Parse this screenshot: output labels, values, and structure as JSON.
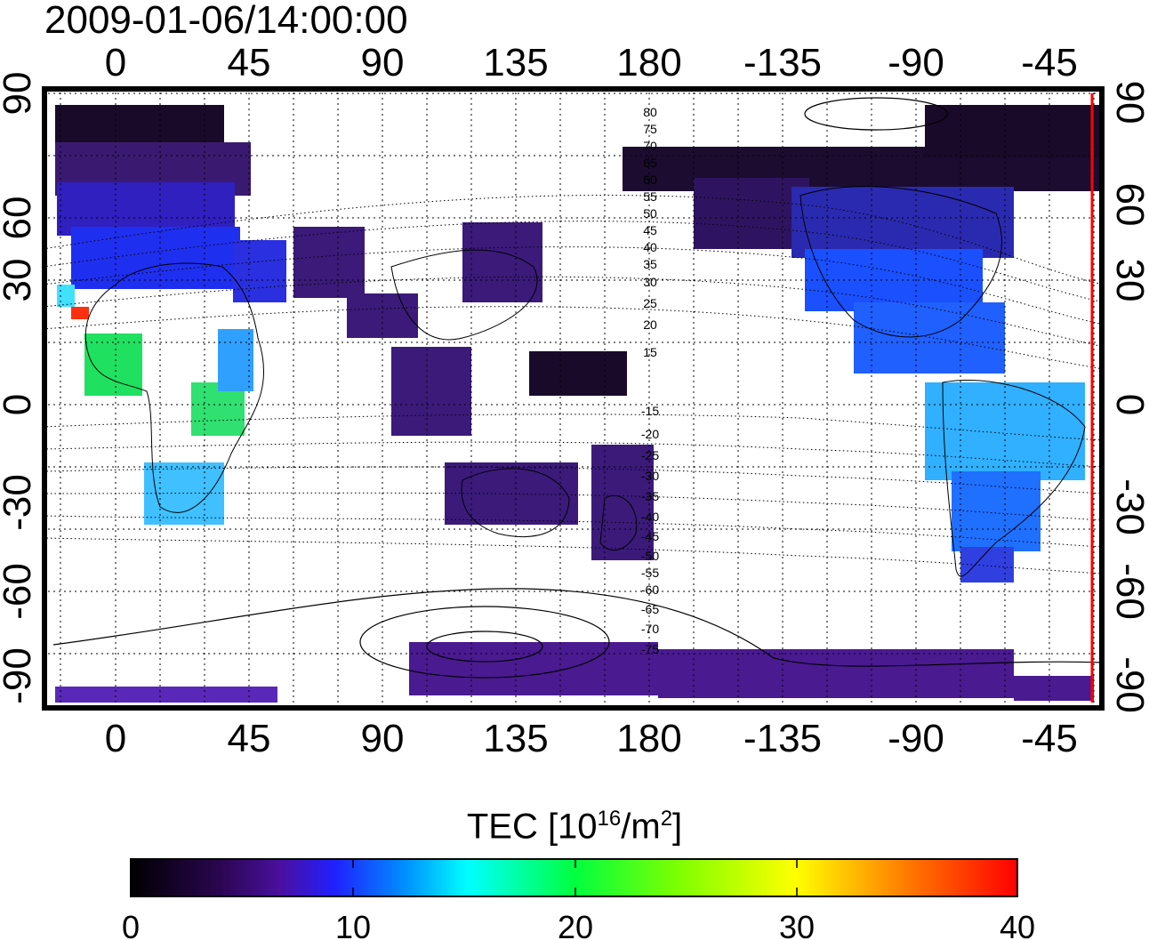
{
  "timestamp": "2009-01-06/14:00:00",
  "map": {
    "top_lon_ticks": [
      "0",
      "45",
      "90",
      "135",
      "180",
      "-135",
      "-90",
      "-45"
    ],
    "bottom_lon_ticks": [
      "0",
      "45",
      "90",
      "135",
      "180",
      "-135",
      "-90",
      "-45"
    ],
    "left_lat_ticks": [
      "90",
      "60",
      "30",
      "0",
      "-30",
      "-60",
      "-90"
    ],
    "right_lat_ticks": [
      "90",
      "60",
      "30",
      "0",
      "-30",
      "-60",
      "-90"
    ],
    "contour_labels": [
      "80",
      "75",
      "70",
      "65",
      "60",
      "55",
      "50",
      "45",
      "40",
      "35",
      "30",
      "25",
      "20",
      "15",
      "-15",
      "-20",
      "-25",
      "-30",
      "-35",
      "-40",
      "-45",
      "-50",
      "-55",
      "-60",
      "-65",
      "-70",
      "-75"
    ],
    "terminator_color": "#ff0000"
  },
  "colorbar": {
    "title_main": "TEC  [10",
    "title_exp1": "16",
    "title_mid": "/m",
    "title_exp2": "2",
    "title_end": "]",
    "tick_labels": [
      "0",
      "10",
      "20",
      "30",
      "40"
    ],
    "colors": [
      "#000000",
      "#3a0a55",
      "#4a10a0",
      "#2020ff",
      "#0090ff",
      "#00ffff",
      "#00ff40",
      "#80ff00",
      "#ffff00",
      "#ff8000",
      "#ff0000"
    ]
  }
}
